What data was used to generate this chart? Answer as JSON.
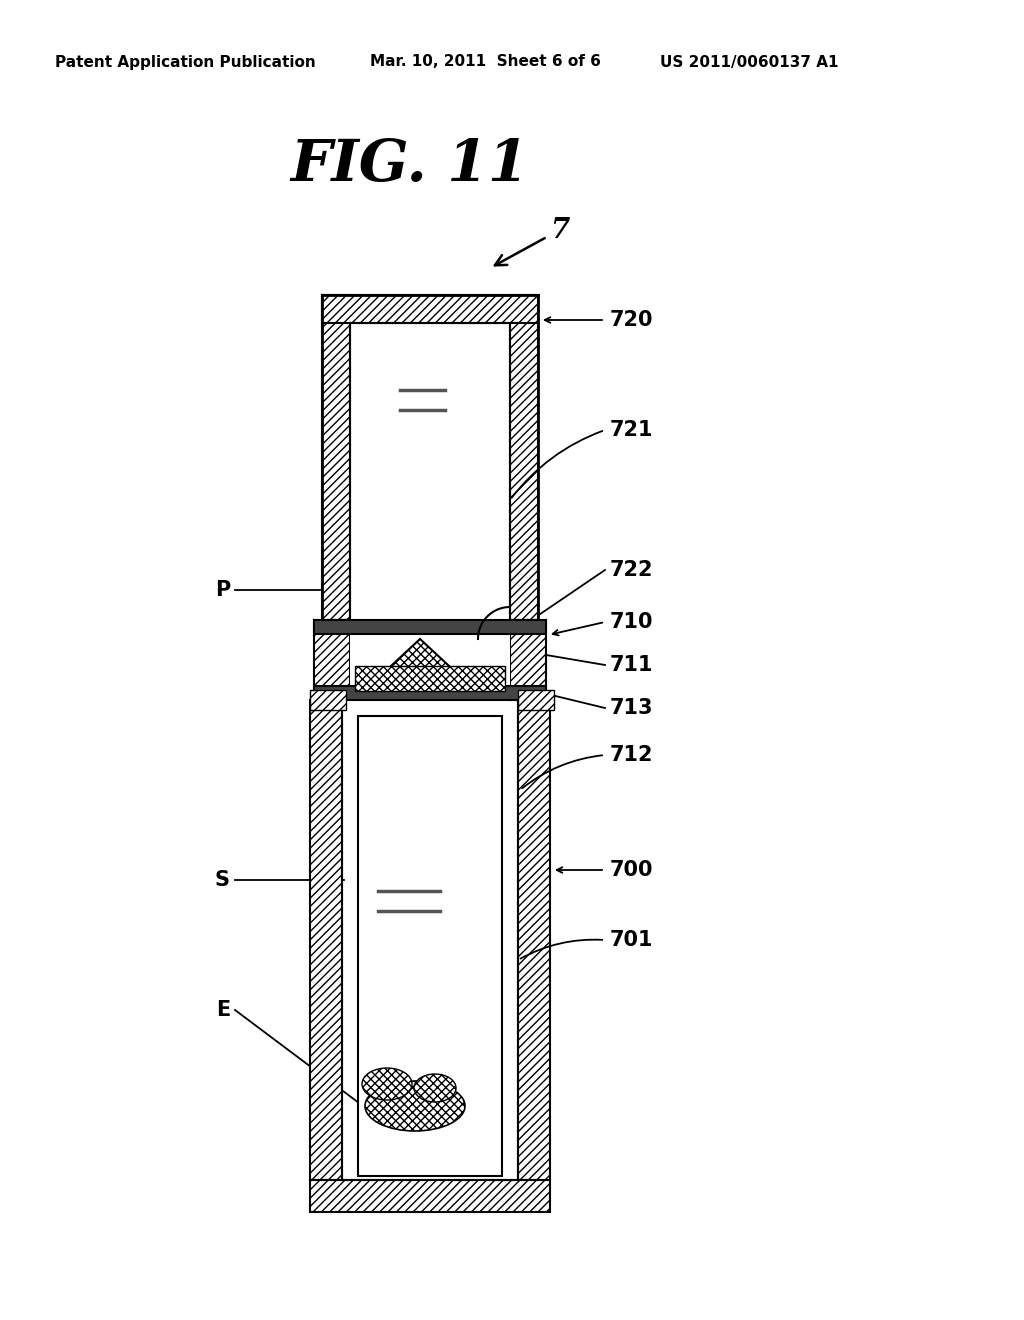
{
  "title": "FIG. 11",
  "header_left": "Patent Application Publication",
  "header_mid": "Mar. 10, 2011  Sheet 6 of 6",
  "header_right": "US 2011/0060137 A1",
  "bg_color": "#ffffff"
}
